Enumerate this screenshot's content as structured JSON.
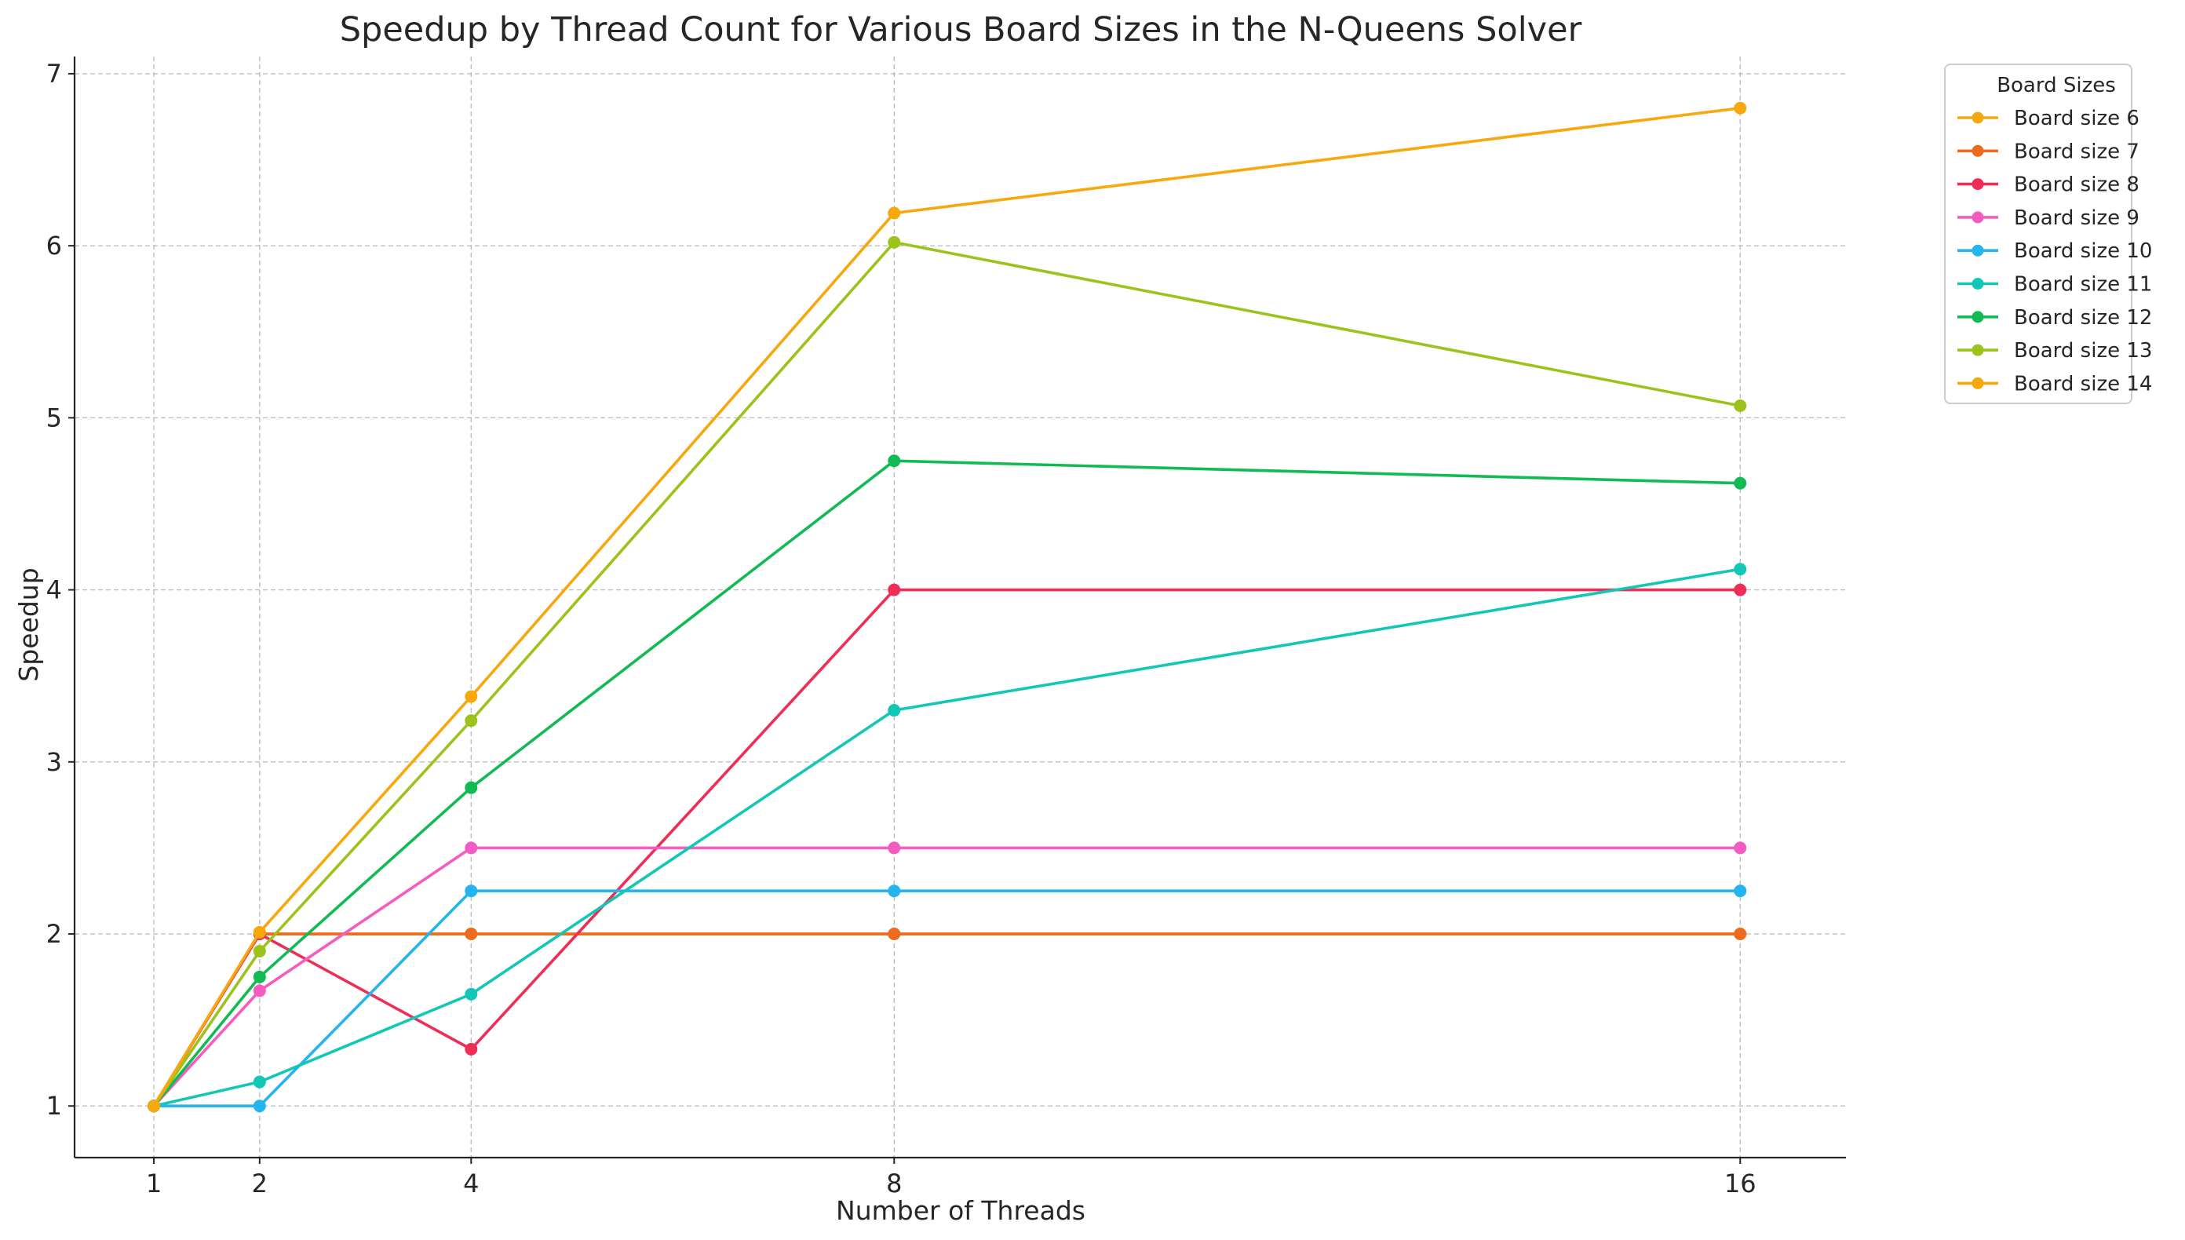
{
  "chart_data": {
    "type": "line",
    "title": "Speedup by Thread Count for Various Board Sizes in the N-Queens Solver",
    "xlabel": "Number of Threads",
    "ylabel": "Speedup",
    "x": [
      1,
      2,
      4,
      8,
      16
    ],
    "x_ticks": [
      1,
      2,
      4,
      8,
      16
    ],
    "xlim": [
      0.25,
      17.0
    ],
    "y_ticks": [
      1,
      2,
      3,
      4,
      5,
      6,
      7
    ],
    "ylim": [
      0.7,
      7.1
    ],
    "grid": true,
    "legend_position": "outside-top-right",
    "legend_title": "Board Sizes",
    "series": [
      {
        "name": "Board size 6",
        "color": "#f5a90f",
        "values": [
          1,
          2,
          2,
          2,
          2
        ]
      },
      {
        "name": "Board size 7",
        "color": "#ee6a1f",
        "values": [
          1,
          2,
          2,
          2,
          2
        ]
      },
      {
        "name": "Board size 8",
        "color": "#ef2d56",
        "values": [
          1,
          2,
          1.33,
          4,
          4
        ]
      },
      {
        "name": "Board size 9",
        "color": "#f55cc1",
        "values": [
          1,
          1.67,
          2.5,
          2.5,
          2.5
        ]
      },
      {
        "name": "Board size 10",
        "color": "#24b4f0",
        "values": [
          1,
          1,
          2.25,
          2.25,
          2.25
        ]
      },
      {
        "name": "Board size 11",
        "color": "#12c7b5",
        "values": [
          1,
          1.14,
          1.65,
          3.3,
          4.12
        ]
      },
      {
        "name": "Board size 12",
        "color": "#11bb53",
        "values": [
          1,
          1.75,
          2.85,
          4.75,
          4.62
        ]
      },
      {
        "name": "Board size 13",
        "color": "#9cc31c",
        "values": [
          1,
          1.9,
          3.24,
          6.02,
          5.07
        ]
      },
      {
        "name": "Board size 14",
        "color": "#f7a80c",
        "values": [
          1,
          2.01,
          3.38,
          6.19,
          6.8
        ]
      }
    ]
  }
}
